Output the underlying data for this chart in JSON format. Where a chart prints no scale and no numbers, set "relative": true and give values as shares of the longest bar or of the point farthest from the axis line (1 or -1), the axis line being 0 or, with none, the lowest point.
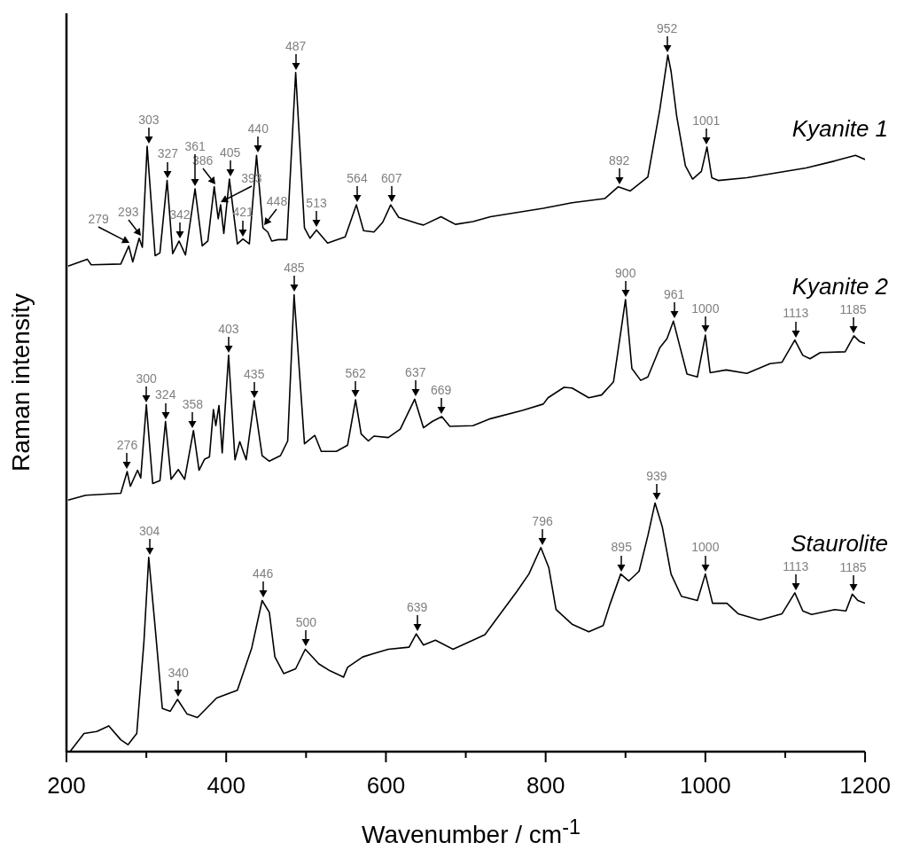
{
  "chart_data": {
    "type": "line",
    "relative": true,
    "xlabel": "Wavenumber / cm$^{-1}$",
    "ylabel": "Raman intensity",
    "xlim": [
      200,
      1200
    ],
    "xticks": [
      200,
      {
        "value": 300,
        "label": null
      },
      400,
      {
        "value": 500,
        "label": null
      },
      600,
      {
        "value": 700,
        "label": null
      },
      800,
      {
        "value": 900,
        "label": null
      },
      1000,
      {
        "value": 1100,
        "label": null
      },
      1200
    ],
    "series": [
      {
        "name": "Kyanite 1",
        "color": "#000000",
        "x": [
          202,
          226,
          231,
          268,
          278,
          283,
          291,
          295,
          301,
          311,
          317,
          326,
          333,
          341,
          349,
          361,
          370,
          377,
          385,
          390,
          393,
          397,
          404,
          414,
          421,
          429,
          438,
          446,
          452,
          457,
          465,
          476,
          487,
          498,
          505,
          513,
          527,
          549,
          563,
          572,
          585,
          596,
          606,
          616,
          640,
          647,
          669,
          687,
          709,
          731,
          797,
          833,
          874,
          891,
          906,
          928,
          943,
          953,
          957,
          964,
          975,
          984,
          995,
          1002,
          1008,
          1016,
          1052,
          1089,
          1126,
          1162,
          1188,
          1200
        ],
        "values": [
          0.697,
          0.707,
          0.699,
          0.7,
          0.726,
          0.703,
          0.737,
          0.724,
          0.869,
          0.712,
          0.716,
          0.82,
          0.715,
          0.733,
          0.713,
          0.808,
          0.726,
          0.733,
          0.811,
          0.765,
          0.785,
          0.744,
          0.822,
          0.729,
          0.736,
          0.729,
          0.856,
          0.752,
          0.746,
          0.733,
          0.735,
          0.735,
          0.975,
          0.752,
          0.737,
          0.749,
          0.73,
          0.739,
          0.785,
          0.748,
          0.746,
          0.76,
          0.785,
          0.767,
          0.758,
          0.756,
          0.768,
          0.757,
          0.761,
          0.768,
          0.78,
          0.788,
          0.794,
          0.811,
          0.805,
          0.825,
          0.922,
          1.0,
          0.977,
          0.913,
          0.841,
          0.822,
          0.833,
          0.868,
          0.824,
          0.82,
          0.824,
          0.831,
          0.838,
          0.848,
          0.856,
          0.85
        ]
      },
      {
        "name": "Kyanite 2",
        "color": "#000000",
        "x": [
          202,
          224,
          268,
          276,
          280,
          289,
          293,
          300,
          308,
          317,
          324,
          331,
          340,
          348,
          359,
          366,
          373,
          379,
          384,
          387,
          391,
          395,
          403,
          411,
          417,
          425,
          435,
          445,
          454,
          468,
          477,
          485,
          498,
          511,
          519,
          538,
          552,
          562,
          569,
          578,
          585,
          603,
          618,
          636,
          647,
          658,
          670,
          680,
          709,
          731,
          771,
          797,
          803,
          823,
          833,
          854,
          870,
          885,
          900,
          908,
          919,
          928,
          943,
          952,
          960,
          968,
          977,
          990,
          1000,
          1006,
          1026,
          1052,
          1081,
          1096,
          1112,
          1122,
          1131,
          1144,
          1175,
          1186,
          1193,
          1200
        ],
        "values": [
          0.361,
          0.368,
          0.371,
          0.402,
          0.381,
          0.404,
          0.393,
          0.498,
          0.385,
          0.389,
          0.474,
          0.391,
          0.405,
          0.391,
          0.461,
          0.404,
          0.42,
          0.423,
          0.491,
          0.468,
          0.497,
          0.429,
          0.569,
          0.419,
          0.445,
          0.419,
          0.504,
          0.425,
          0.417,
          0.425,
          0.446,
          0.656,
          0.442,
          0.454,
          0.431,
          0.431,
          0.44,
          0.505,
          0.456,
          0.446,
          0.453,
          0.451,
          0.463,
          0.506,
          0.465,
          0.474,
          0.481,
          0.467,
          0.468,
          0.478,
          0.49,
          0.499,
          0.508,
          0.523,
          0.522,
          0.508,
          0.512,
          0.531,
          0.649,
          0.55,
          0.533,
          0.538,
          0.58,
          0.593,
          0.618,
          0.582,
          0.542,
          0.538,
          0.598,
          0.544,
          0.548,
          0.543,
          0.557,
          0.559,
          0.591,
          0.569,
          0.564,
          0.573,
          0.574,
          0.597,
          0.589,
          0.586
        ]
      },
      {
        "name": "Staurolite",
        "color": "#000000",
        "x": [
          205,
          222,
          238,
          253,
          268,
          277,
          288,
          297,
          303,
          311,
          320,
          330,
          339,
          351,
          364,
          388,
          414,
          432,
          445,
          454,
          461,
          472,
          487,
          499,
          516,
          530,
          547,
          552,
          571,
          585,
          603,
          629,
          638,
          647,
          662,
          684,
          709,
          724,
          742,
          764,
          779,
          794,
          804,
          813,
          833,
          854,
          872,
          881,
          894,
          904,
          917,
          928,
          937,
          946,
          957,
          970,
          990,
          1000,
          1009,
          1027,
          1041,
          1068,
          1096,
          1112,
          1122,
          1133,
          1162,
          1176,
          1184,
          1191,
          1200
        ],
        "values": [
          0.001,
          0.026,
          0.029,
          0.037,
          0.017,
          0.01,
          0.026,
          0.158,
          0.279,
          0.179,
          0.062,
          0.058,
          0.075,
          0.054,
          0.049,
          0.077,
          0.088,
          0.149,
          0.217,
          0.2,
          0.136,
          0.112,
          0.119,
          0.147,
          0.126,
          0.116,
          0.107,
          0.121,
          0.136,
          0.141,
          0.147,
          0.15,
          0.169,
          0.153,
          0.16,
          0.147,
          0.16,
          0.168,
          0.196,
          0.23,
          0.255,
          0.293,
          0.264,
          0.204,
          0.183,
          0.172,
          0.181,
          0.213,
          0.255,
          0.245,
          0.259,
          0.31,
          0.357,
          0.323,
          0.255,
          0.223,
          0.217,
          0.255,
          0.213,
          0.213,
          0.198,
          0.189,
          0.198,
          0.228,
          0.202,
          0.197,
          0.204,
          0.202,
          0.226,
          0.217,
          0.213
        ]
      }
    ],
    "annotations": [
      {
        "text": "279",
        "x": 279,
        "y": 0.726
      },
      {
        "text": "293",
        "x": 293,
        "y": 0.737
      },
      {
        "text": "303",
        "x": 303,
        "y": 0.869
      },
      {
        "text": "327",
        "x": 327,
        "y": 0.82
      },
      {
        "text": "342",
        "x": 342,
        "y": 0.733
      },
      {
        "text": "361",
        "x": 361,
        "y": 0.808
      },
      {
        "text": "386",
        "x": 386,
        "y": 0.811
      },
      {
        "text": "393",
        "x": 393,
        "y": 0.785
      },
      {
        "text": "405",
        "x": 405,
        "y": 0.822
      },
      {
        "text": "421",
        "x": 421,
        "y": 0.736
      },
      {
        "text": "440",
        "x": 440,
        "y": 0.856
      },
      {
        "text": "448",
        "x": 448,
        "y": 0.752
      },
      {
        "text": "487",
        "x": 487,
        "y": 0.975
      },
      {
        "text": "513",
        "x": 513,
        "y": 0.749
      },
      {
        "text": "564",
        "x": 564,
        "y": 0.785
      },
      {
        "text": "607",
        "x": 607,
        "y": 0.785
      },
      {
        "text": "892",
        "x": 892,
        "y": 0.811
      },
      {
        "text": "952",
        "x": 952,
        "y": 1.0
      },
      {
        "text": "1001",
        "x": 1001,
        "y": 0.868
      },
      {
        "text": "276",
        "x": 276,
        "y": 0.402
      },
      {
        "text": "300",
        "x": 300,
        "y": 0.498
      },
      {
        "text": "324",
        "x": 324,
        "y": 0.474
      },
      {
        "text": "358",
        "x": 358,
        "y": 0.461
      },
      {
        "text": "403",
        "x": 403,
        "y": 0.569
      },
      {
        "text": "435",
        "x": 435,
        "y": 0.504
      },
      {
        "text": "485",
        "x": 485,
        "y": 0.656
      },
      {
        "text": "562",
        "x": 562,
        "y": 0.505
      },
      {
        "text": "637",
        "x": 637,
        "y": 0.506
      },
      {
        "text": "669",
        "x": 669,
        "y": 0.481
      },
      {
        "text": "900",
        "x": 900,
        "y": 0.649
      },
      {
        "text": "961",
        "x": 961,
        "y": 0.618
      },
      {
        "text": "1000",
        "x": 1000,
        "y": 0.598
      },
      {
        "text": "1113",
        "x": 1113,
        "y": 0.591
      },
      {
        "text": "1185",
        "x": 1185,
        "y": 0.597
      },
      {
        "text": "304",
        "x": 304,
        "y": 0.279
      },
      {
        "text": "340",
        "x": 340,
        "y": 0.075
      },
      {
        "text": "446",
        "x": 446,
        "y": 0.217
      },
      {
        "text": "500",
        "x": 500,
        "y": 0.147
      },
      {
        "text": "639",
        "x": 639,
        "y": 0.169
      },
      {
        "text": "796",
        "x": 796,
        "y": 0.293
      },
      {
        "text": "895",
        "x": 895,
        "y": 0.255
      },
      {
        "text": "939",
        "x": 939,
        "y": 0.357
      },
      {
        "text": "1000",
        "x": 1000,
        "y": 0.255
      },
      {
        "text": "1113",
        "x": 1113,
        "y": 0.228
      },
      {
        "text": "1185",
        "x": 1185,
        "y": 0.226
      }
    ]
  }
}
